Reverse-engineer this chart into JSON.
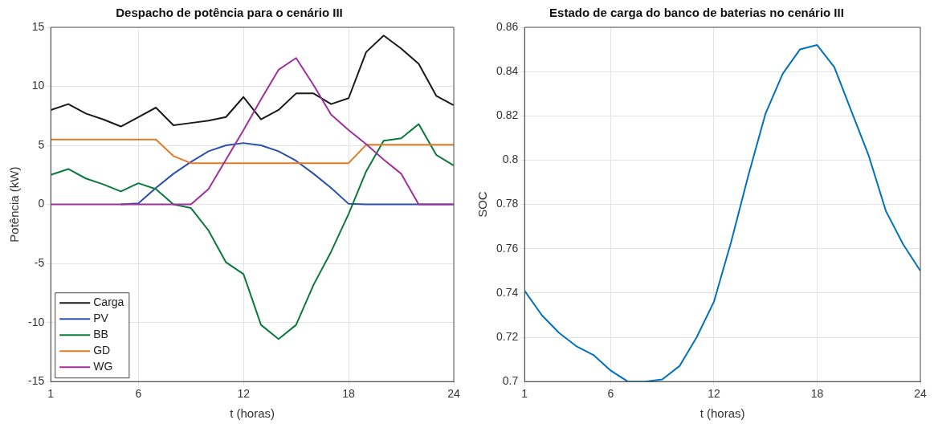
{
  "chart_data": [
    {
      "type": "line",
      "title": "Despacho de potência para o cenário III",
      "xlabel": "t (horas)",
      "ylabel": "Potência (kW)",
      "x": [
        1,
        2,
        3,
        4,
        5,
        6,
        7,
        8,
        9,
        10,
        11,
        12,
        13,
        14,
        15,
        16,
        17,
        18,
        19,
        20,
        21,
        22,
        23,
        24
      ],
      "xlim": [
        1,
        24
      ],
      "xticks": [
        1,
        6,
        12,
        18,
        24
      ],
      "ylim": [
        -15,
        15
      ],
      "yticks": [
        -15,
        -10,
        -5,
        0,
        5,
        10,
        15
      ],
      "grid": true,
      "legend": "bottom left",
      "marker": "none",
      "line_style": "solid",
      "series": [
        {
          "name": "Carga",
          "color": "#1a1a1a",
          "values": [
            8.0,
            8.5,
            7.7,
            7.2,
            6.6,
            7.4,
            8.2,
            6.7,
            6.9,
            7.1,
            7.4,
            9.1,
            7.2,
            8.0,
            9.4,
            9.4,
            8.5,
            9.0,
            12.9,
            14.3,
            13.2,
            11.9,
            9.2,
            8.4
          ]
        },
        {
          "name": "PV",
          "color": "#2b4fad",
          "values": [
            null,
            null,
            null,
            null,
            0,
            0.1,
            1.4,
            2.6,
            3.6,
            4.5,
            5.0,
            5.2,
            5.0,
            4.5,
            3.7,
            2.6,
            1.4,
            0.05,
            0,
            0,
            0,
            0,
            0,
            0
          ]
        },
        {
          "name": "BB",
          "color": "#0a7a3c",
          "values": [
            2.5,
            3.0,
            2.2,
            1.7,
            1.1,
            1.8,
            1.3,
            0.0,
            -0.3,
            -2.2,
            -4.9,
            -5.9,
            -10.2,
            -11.4,
            -10.2,
            -6.8,
            -4.0,
            -0.8,
            2.8,
            5.4,
            5.6,
            6.8,
            4.2,
            3.3
          ]
        },
        {
          "name": "GD",
          "color": "#e07b27",
          "values": [
            5.5,
            5.5,
            5.5,
            5.5,
            5.5,
            5.5,
            5.5,
            4.1,
            3.5,
            3.5,
            3.5,
            3.5,
            3.5,
            3.5,
            3.5,
            3.5,
            3.5,
            3.5,
            5.05,
            5.05,
            5.05,
            5.05,
            5.05,
            5.05
          ]
        },
        {
          "name": "WG",
          "color": "#a0309c",
          "values": [
            0,
            0,
            0,
            0,
            0,
            0,
            0,
            0,
            0,
            1.3,
            3.8,
            6.3,
            8.9,
            11.4,
            12.4,
            10.1,
            7.6,
            6.3,
            5.1,
            3.8,
            2.6,
            0,
            0,
            0
          ]
        }
      ]
    },
    {
      "type": "line",
      "title": "Estado de carga do banco de baterias no cenário III",
      "xlabel": "t (horas)",
      "ylabel": "SOC",
      "x": [
        1,
        2,
        3,
        4,
        5,
        6,
        7,
        8,
        9,
        10,
        11,
        12,
        13,
        14,
        15,
        16,
        17,
        18,
        19,
        20,
        21,
        22,
        23,
        24
      ],
      "xlim": [
        1,
        24
      ],
      "xticks": [
        1,
        6,
        12,
        18,
        24
      ],
      "ylim": [
        0.7,
        0.86
      ],
      "yticks": [
        0.7,
        0.72,
        0.74,
        0.76,
        0.78,
        0.8,
        0.82,
        0.84,
        0.86
      ],
      "grid": true,
      "marker": "none",
      "line_style": "solid",
      "series": [
        {
          "color": "#0072bd",
          "values": [
            0.741,
            0.73,
            0.722,
            0.716,
            0.712,
            0.705,
            0.7,
            0.7,
            0.701,
            0.707,
            0.72,
            0.736,
            0.763,
            0.793,
            0.821,
            0.839,
            0.85,
            0.852,
            0.842,
            0.822,
            0.802,
            0.777,
            0.762,
            0.75
          ]
        }
      ]
    }
  ]
}
